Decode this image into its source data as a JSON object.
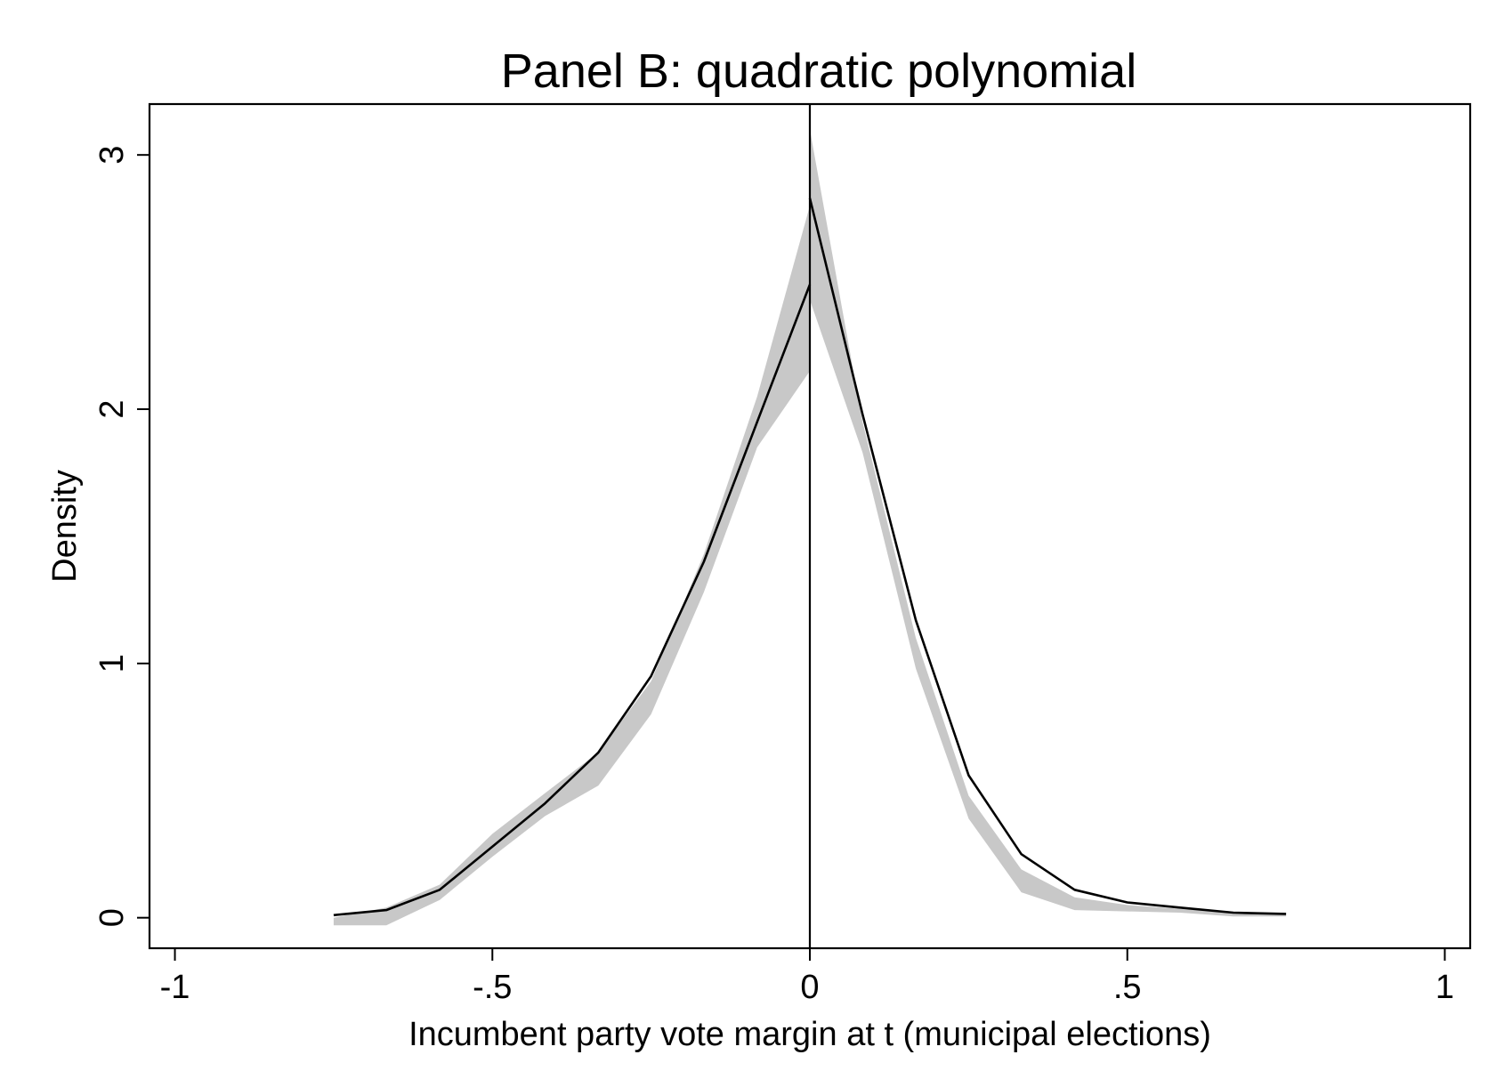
{
  "chart_data": {
    "type": "line",
    "title": "Panel B: quadratic polynomial",
    "xlabel": "Incumbent party vote margin at t (municipal elections)",
    "ylabel": "Density",
    "xlim": [
      -1.04,
      1.04
    ],
    "ylim": [
      -0.12,
      3.2
    ],
    "x_ticks": [
      -1,
      -0.5,
      0,
      0.5,
      1
    ],
    "x_tick_labels": [
      "-1",
      "-.5",
      "0",
      ".5",
      "1"
    ],
    "y_ticks": [
      0,
      1,
      2,
      3
    ],
    "y_tick_labels": [
      "0",
      "1",
      "2",
      "3"
    ],
    "grid": false,
    "reference_line_x": 0,
    "colors": {
      "line": "#000000",
      "band": "#c8c8c8",
      "axis": "#000000"
    },
    "series": [
      {
        "side": "left",
        "x": [
          -0.75,
          -0.667,
          -0.583,
          -0.5,
          -0.417,
          -0.333,
          -0.25,
          -0.167,
          -0.083,
          0
        ],
        "y": [
          0.01,
          0.03,
          0.11,
          0.28,
          0.45,
          0.65,
          0.95,
          1.4,
          1.95,
          2.49
        ],
        "ci_lower": [
          -0.03,
          -0.03,
          0.07,
          0.24,
          0.4,
          0.52,
          0.8,
          1.28,
          1.85,
          2.15
        ],
        "ci_upper": [
          0.0,
          0.04,
          0.13,
          0.33,
          0.49,
          0.65,
          0.93,
          1.43,
          2.05,
          2.8
        ]
      },
      {
        "side": "right",
        "x": [
          0,
          0.083,
          0.167,
          0.25,
          0.333,
          0.417,
          0.5,
          0.583,
          0.667,
          0.75
        ],
        "y": [
          2.83,
          1.98,
          1.17,
          0.56,
          0.25,
          0.11,
          0.06,
          0.04,
          0.02,
          0.015
        ],
        "ci_lower": [
          2.43,
          1.83,
          0.98,
          0.39,
          0.1,
          0.03,
          0.025,
          0.02,
          0.005,
          0.005
        ],
        "ci_upper": [
          3.1,
          1.95,
          1.1,
          0.48,
          0.19,
          0.08,
          0.05,
          0.035,
          0.02,
          0.02
        ]
      }
    ]
  }
}
